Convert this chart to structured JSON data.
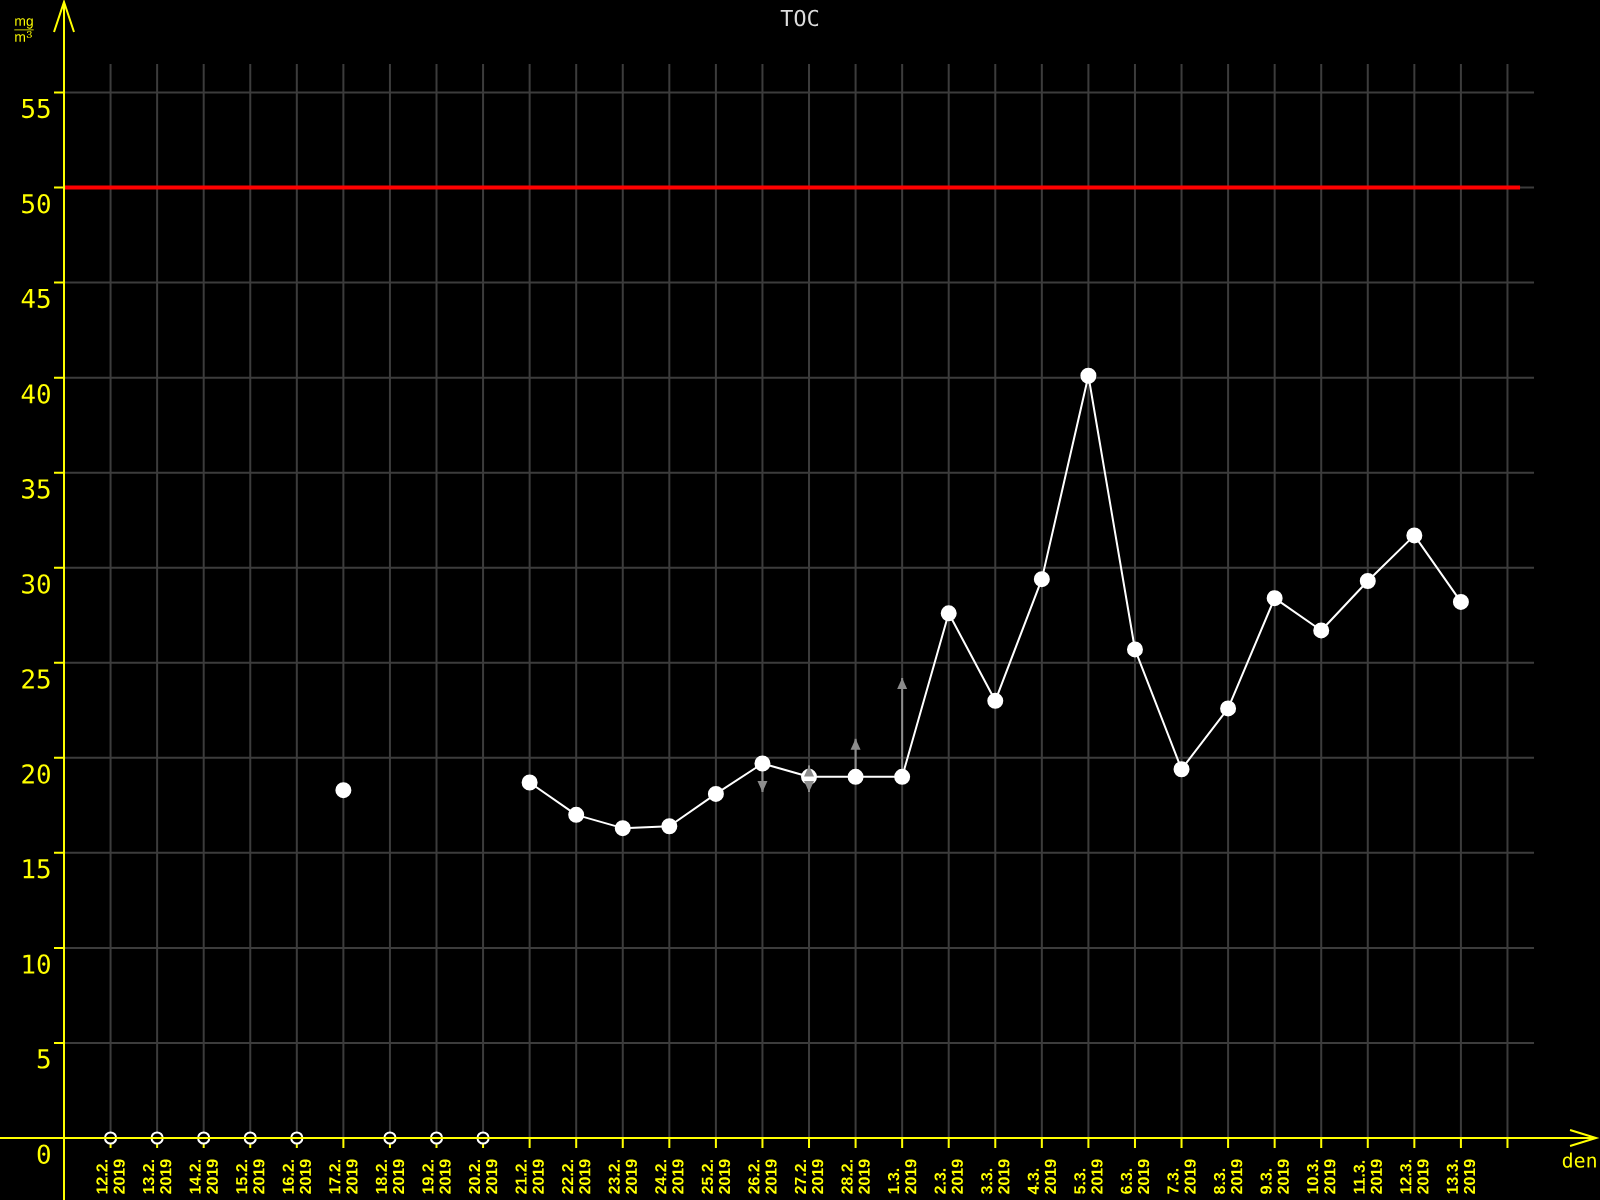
{
  "chart_data": {
    "type": "line",
    "title": "TOC",
    "xlabel": "den",
    "ylabel": "\\frac{\\mathrm{mg}}{\\mathrm{m}^{3}}",
    "categories": [
      "12.2. 2019",
      "13.2. 2019",
      "14.2. 2019",
      "15.2. 2019",
      "16.2. 2019",
      "17.2. 2019",
      "18.2. 2019",
      "19.2. 2019",
      "20.2. 2019",
      "21.2. 2019",
      "22.2. 2019",
      "23.2. 2019",
      "24.2. 2019",
      "25.2. 2019",
      "26.2. 2019",
      "27.2. 2019",
      "28.2. 2019",
      "1.3. 2019",
      "2.3. 2019",
      "3.3. 2019",
      "4.3. 2019",
      "5.3. 2019",
      "6.3. 2019",
      "7.3. 2019",
      "8.3. 2019",
      "9.3. 2019",
      "10.3. 2019",
      "11.3. 2019",
      "12.3. 2019",
      "13.3. 2019"
    ],
    "series": [
      {
        "color": "#ffffff",
        "values": [
          null,
          null,
          null,
          null,
          null,
          18.3,
          null,
          null,
          null,
          18.7,
          17.0,
          16.3,
          16.4,
          18.1,
          19.7,
          19.0,
          19.0,
          19.0,
          27.6,
          23.0,
          29.4,
          40.1,
          25.7,
          19.4,
          22.6,
          28.4,
          26.7,
          29.3,
          31.7,
          28.2
        ],
        "errors": [
          null,
          null,
          null,
          null,
          null,
          null,
          null,
          null,
          null,
          null,
          null,
          null,
          null,
          null,
          [
            18.2,
            19.7
          ],
          [
            18.2,
            19.6
          ],
          [
            19.0,
            21.0
          ],
          [
            19.0,
            24.2
          ],
          null,
          null,
          null,
          null,
          null,
          null,
          null,
          null,
          null,
          null,
          null,
          null
        ]
      },
      {
        "type": "scatter",
        "color": "#ffffff",
        "values": [
          0,
          0,
          0,
          0,
          0,
          null,
          0,
          0,
          0,
          null,
          null,
          null,
          null,
          null,
          null,
          null,
          null,
          null,
          null,
          null,
          null,
          null,
          null,
          null,
          null,
          null,
          null,
          null,
          null,
          null
        ]
      }
    ],
    "ylim": [
      0,
      56.5
    ],
    "yticks": [
      0,
      5,
      10,
      15,
      20,
      25,
      30,
      35,
      40,
      45,
      50,
      55
    ],
    "grid": true,
    "marker": "circle",
    "line_style": "solid",
    "ref_lines": [
      {
        "axis": "y",
        "value": 50,
        "color": "#ff0000"
      }
    ]
  }
}
